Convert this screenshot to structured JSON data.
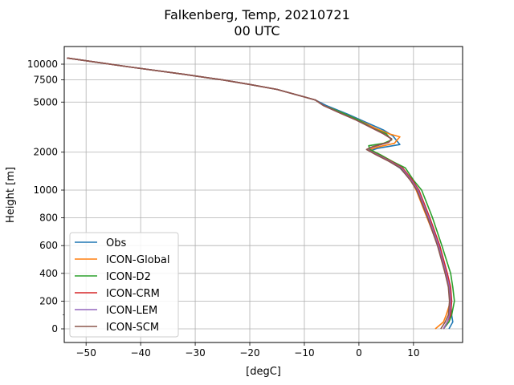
{
  "chart_data": {
    "type": "line",
    "title": "Falkenberg, Temp, 20210721",
    "subtitle": "00 UTC",
    "xlabel": "[degC]",
    "ylabel": "Height [m]",
    "xlim": [
      -54,
      19
    ],
    "xticks": [
      -50,
      -40,
      -30,
      -20,
      -10,
      0,
      10
    ],
    "xtick_labels": [
      "−50",
      "−40",
      "−30",
      "−20",
      "−10",
      "0",
      "10"
    ],
    "yticks": [
      0,
      200,
      400,
      600,
      800,
      1000,
      2000,
      5000,
      7500,
      10000
    ],
    "ytick_labels": [
      "0",
      "200",
      "400",
      "600",
      "800",
      "1000",
      "2000",
      "5000",
      "7500",
      "10000"
    ],
    "y_scale": "piecewise: linear 0-1000 m, logarithmic above 1000 m",
    "grid": true,
    "legend_position": "lower-left",
    "series": [
      {
        "name": "Obs",
        "color": "#1f77b4",
        "points": [
          [
            16.5,
            0
          ],
          [
            17.2,
            50
          ],
          [
            17.0,
            100
          ],
          [
            16.8,
            200
          ],
          [
            16.6,
            300
          ],
          [
            16.0,
            400
          ],
          [
            14.8,
            600
          ],
          [
            12.8,
            800
          ],
          [
            11.0,
            1000
          ],
          [
            9.5,
            1200
          ],
          [
            7.5,
            1500
          ],
          [
            5.5,
            1700
          ],
          [
            3.8,
            1900
          ],
          [
            2.0,
            2050
          ],
          [
            3.5,
            2150
          ],
          [
            7.5,
            2300
          ],
          [
            6.2,
            2700
          ],
          [
            4.5,
            3000
          ],
          [
            1.0,
            3500
          ],
          [
            -2.0,
            4000
          ],
          [
            -6.0,
            4700
          ],
          [
            -8.0,
            5200
          ],
          [
            -12.0,
            5800
          ],
          [
            -15.0,
            6300
          ],
          [
            -20.0,
            6900
          ],
          [
            -25.0,
            7500
          ],
          [
            -32.0,
            8300
          ],
          [
            -42.0,
            9500
          ],
          [
            -49.0,
            10500
          ],
          [
            -53.5,
            11200
          ]
        ]
      },
      {
        "name": "ICON-Global",
        "color": "#ff7f0e",
        "points": [
          [
            14.0,
            0
          ],
          [
            15.5,
            50
          ],
          [
            16.0,
            100
          ],
          [
            16.8,
            200
          ],
          [
            16.5,
            300
          ],
          [
            15.8,
            400
          ],
          [
            14.5,
            600
          ],
          [
            12.5,
            800
          ],
          [
            10.5,
            1000
          ],
          [
            9.5,
            1200
          ],
          [
            8.0,
            1500
          ],
          [
            6.0,
            1700
          ],
          [
            4.0,
            1900
          ],
          [
            2.0,
            2100
          ],
          [
            3.5,
            2200
          ],
          [
            6.5,
            2350
          ],
          [
            7.0,
            2500
          ],
          [
            7.5,
            2650
          ],
          [
            5.5,
            2800
          ],
          [
            3.0,
            3100
          ],
          [
            0.0,
            3600
          ],
          [
            -3.0,
            4100
          ],
          [
            -6.5,
            4700
          ],
          [
            -8.0,
            5200
          ],
          [
            -12.0,
            5800
          ],
          [
            -15.0,
            6300
          ],
          [
            -20.0,
            6900
          ],
          [
            -25.0,
            7500
          ],
          [
            -32.0,
            8300
          ],
          [
            -42.0,
            9500
          ],
          [
            -49.0,
            10500
          ],
          [
            -53.5,
            11200
          ]
        ]
      },
      {
        "name": "ICON-D2",
        "color": "#2ca02c",
        "points": [
          [
            15.5,
            0
          ],
          [
            16.5,
            50
          ],
          [
            17.0,
            100
          ],
          [
            17.5,
            200
          ],
          [
            17.2,
            300
          ],
          [
            16.8,
            400
          ],
          [
            15.2,
            600
          ],
          [
            13.5,
            800
          ],
          [
            11.5,
            1000
          ],
          [
            10.0,
            1200
          ],
          [
            8.5,
            1500
          ],
          [
            6.0,
            1700
          ],
          [
            4.0,
            1900
          ],
          [
            2.0,
            2100
          ],
          [
            1.8,
            2250
          ],
          [
            4.5,
            2350
          ],
          [
            6.0,
            2500
          ],
          [
            5.0,
            2800
          ],
          [
            2.5,
            3100
          ],
          [
            0.0,
            3600
          ],
          [
            -3.0,
            4100
          ],
          [
            -6.5,
            4700
          ],
          [
            -8.0,
            5200
          ],
          [
            -12.0,
            5800
          ],
          [
            -15.0,
            6300
          ],
          [
            -20.0,
            6900
          ],
          [
            -25.0,
            7500
          ],
          [
            -32.0,
            8300
          ],
          [
            -42.0,
            9500
          ],
          [
            -49.0,
            10500
          ],
          [
            -53.5,
            11200
          ]
        ]
      },
      {
        "name": "ICON-CRM",
        "color": "#d62728",
        "points": [
          [
            15.5,
            0
          ],
          [
            16.2,
            50
          ],
          [
            16.8,
            100
          ],
          [
            17.0,
            200
          ],
          [
            16.8,
            300
          ],
          [
            16.2,
            400
          ],
          [
            14.8,
            600
          ],
          [
            13.0,
            800
          ],
          [
            11.0,
            1000
          ],
          [
            9.8,
            1200
          ],
          [
            8.0,
            1500
          ],
          [
            5.8,
            1700
          ],
          [
            3.5,
            1900
          ],
          [
            1.5,
            2100
          ],
          [
            2.5,
            2200
          ],
          [
            5.5,
            2400
          ],
          [
            6.0,
            2550
          ],
          [
            4.5,
            2800
          ],
          [
            2.5,
            3100
          ],
          [
            -0.5,
            3600
          ],
          [
            -3.5,
            4100
          ],
          [
            -6.5,
            4700
          ],
          [
            -8.0,
            5200
          ],
          [
            -12.0,
            5800
          ],
          [
            -15.0,
            6300
          ],
          [
            -20.0,
            6900
          ],
          [
            -25.0,
            7500
          ],
          [
            -32.0,
            8300
          ],
          [
            -42.0,
            9500
          ],
          [
            -49.0,
            10500
          ],
          [
            -53.5,
            11200
          ]
        ]
      },
      {
        "name": "ICON-LEM",
        "color": "#9467bd",
        "points": [
          [
            15.5,
            0
          ],
          [
            16.2,
            50
          ],
          [
            16.6,
            100
          ],
          [
            16.8,
            200
          ],
          [
            16.6,
            300
          ],
          [
            16.0,
            400
          ],
          [
            14.6,
            600
          ],
          [
            12.8,
            800
          ],
          [
            10.8,
            1000
          ],
          [
            9.6,
            1200
          ],
          [
            7.8,
            1500
          ],
          [
            5.6,
            1700
          ],
          [
            3.4,
            1900
          ],
          [
            1.5,
            2100
          ],
          [
            2.5,
            2200
          ],
          [
            5.5,
            2400
          ],
          [
            6.0,
            2550
          ],
          [
            4.5,
            2800
          ],
          [
            2.5,
            3100
          ],
          [
            -0.5,
            3600
          ],
          [
            -3.5,
            4100
          ],
          [
            -6.5,
            4700
          ],
          [
            -8.0,
            5200
          ],
          [
            -12.0,
            5800
          ],
          [
            -15.0,
            6300
          ],
          [
            -20.0,
            6900
          ],
          [
            -25.0,
            7500
          ],
          [
            -32.0,
            8300
          ],
          [
            -42.0,
            9500
          ],
          [
            -49.0,
            10500
          ],
          [
            -53.5,
            11200
          ]
        ]
      },
      {
        "name": "ICON-SCM",
        "color": "#8c564b",
        "points": [
          [
            15.0,
            0
          ],
          [
            15.8,
            50
          ],
          [
            16.4,
            100
          ],
          [
            16.6,
            200
          ],
          [
            16.4,
            300
          ],
          [
            15.8,
            400
          ],
          [
            14.4,
            600
          ],
          [
            12.6,
            800
          ],
          [
            10.6,
            1000
          ],
          [
            9.4,
            1200
          ],
          [
            7.6,
            1500
          ],
          [
            5.4,
            1700
          ],
          [
            3.2,
            1900
          ],
          [
            1.4,
            2100
          ],
          [
            2.4,
            2200
          ],
          [
            5.4,
            2400
          ],
          [
            6.0,
            2550
          ],
          [
            4.5,
            2800
          ],
          [
            2.5,
            3100
          ],
          [
            -0.5,
            3600
          ],
          [
            -3.5,
            4100
          ],
          [
            -6.5,
            4700
          ],
          [
            -8.0,
            5200
          ],
          [
            -12.0,
            5800
          ],
          [
            -15.0,
            6300
          ],
          [
            -20.0,
            6900
          ],
          [
            -25.0,
            7500
          ],
          [
            -32.0,
            8300
          ],
          [
            -42.0,
            9500
          ],
          [
            -49.0,
            10500
          ],
          [
            -53.5,
            11200
          ]
        ]
      }
    ]
  }
}
